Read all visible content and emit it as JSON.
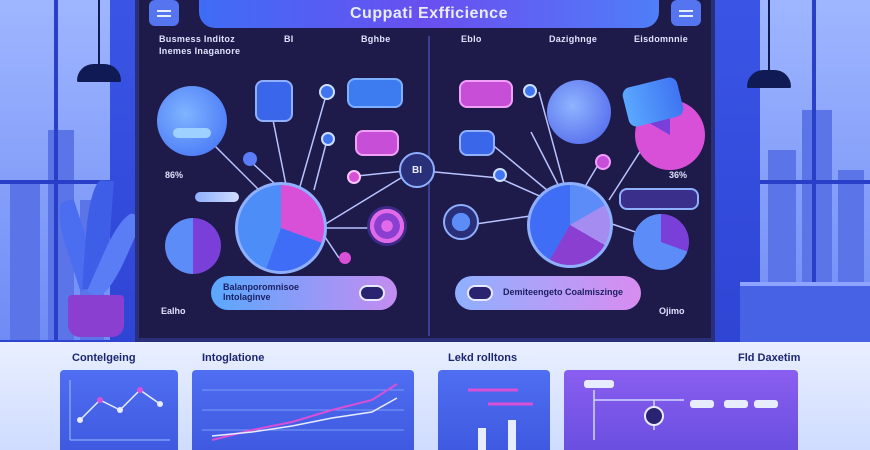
{
  "header": {
    "title": "Cuppati Exfficience"
  },
  "monitor": {
    "left_labels": [
      "Busmess Inditoz",
      "Inemes Inaganore",
      "BI"
    ],
    "left_tab": "Bghbe",
    "right_labels": [
      "Eblo",
      "Dazighnge",
      "Eisdomnnie"
    ],
    "center_badge": "BI",
    "left_pct": "86%",
    "right_pct": "36%",
    "left_cta": "Balanporomnisoe Intolaginve",
    "right_cta": "Demiteengeto Coalmiszinge",
    "left_foot": "Ealho",
    "right_foot": "Ojimo"
  },
  "bottom": {
    "titles": [
      "Contelgeing",
      "Intoglatione",
      "Lekd rolltons",
      "Fld Daxetim"
    ]
  },
  "colors": {
    "accent": "#5a7cf5",
    "purple": "#8a3fd1",
    "pink": "#d84fd8",
    "dark": "#1e1a4a"
  }
}
